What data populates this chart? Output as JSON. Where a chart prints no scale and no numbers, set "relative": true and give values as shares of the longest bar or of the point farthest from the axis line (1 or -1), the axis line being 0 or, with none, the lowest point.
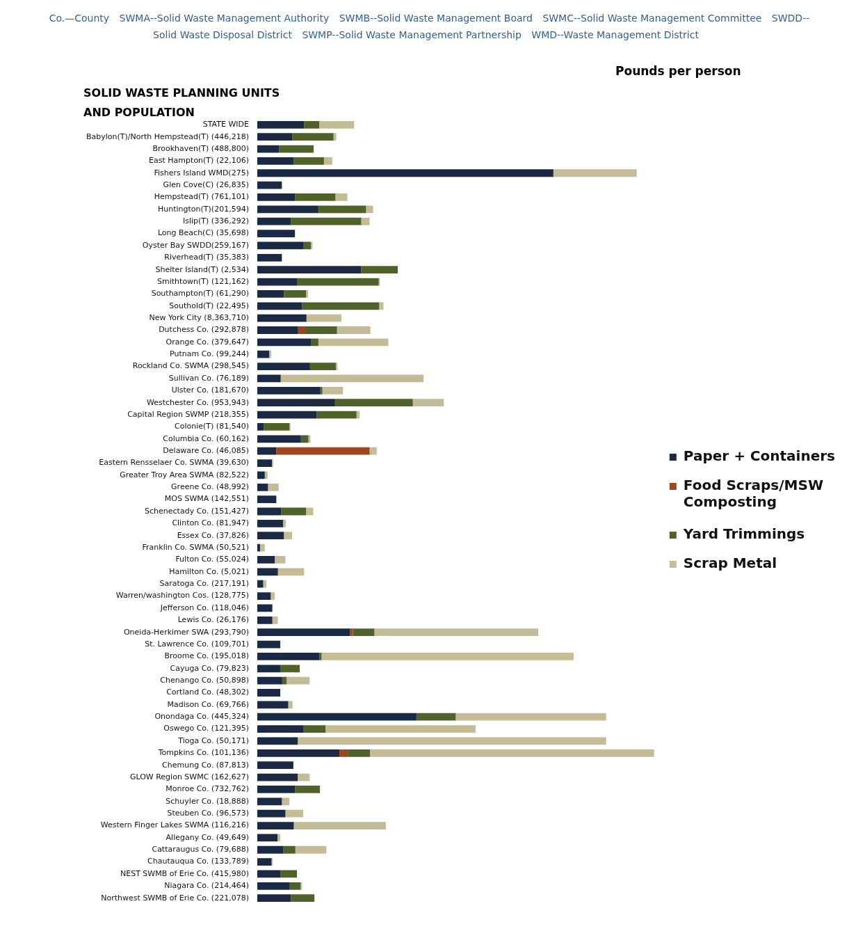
{
  "chart_data": {
    "type": "bar",
    "orientation": "horizontal",
    "stacked": true,
    "relative": true,
    "title": "SOLID WASTE PLANNING UNITS AND POPULATION",
    "subtitle": "Pounds per person",
    "legend": "right",
    "annotations": [
      "Co.—County",
      "SWMA--Solid Waste Management Authority",
      "SWMB--Solid Waste Management Board",
      "SWMC--Solid Waste Management Committee",
      "SWDD--Solid Waste Disposal District",
      "SWMP--Solid Waste Management Partnership",
      "WMD--Waste Management District"
    ],
    "categories": [
      "STATE WIDE",
      "Babylon(T)/North Hempstead(T) (446,218)",
      "Brookhaven(T) (488,800)",
      "East Hampton(T) (22,106)",
      "Fishers Island WMD(275)",
      "Glen Cove(C) (26,835)",
      "Hempstead(T) (761,101)",
      "Huntington(T)(201,594)",
      "Islip(T) (336,292)",
      "Long Beach(C) (35,698)",
      "Oyster Bay SWDD(259,167)",
      "Riverhead(T) (35,383)",
      "Shelter Island(T) (2,534)",
      "Smithtown(T) (121,162)",
      "Southampton(T) (61,290)",
      "Southold(T) (22,495)",
      "New York City (8,363,710)",
      "Dutchess Co. (292,878)",
      "Orange Co. (379,647)",
      "Putnam Co. (99,244)",
      "Rockland Co. SWMA (298,545)",
      "Sullivan Co. (76,189)",
      "Ulster Co. (181,670)",
      "Westchester Co. (953,943)",
      "Capital Region SWMP (218,355)",
      "Colonie(T) (81,540)",
      "Columbia Co. (60,162)",
      "Delaware Co. (46,085)",
      "Eastern Rensselaer Co. SWMA (39,630)",
      "Greater Troy Area SWMA (82,522)",
      "Greene Co. (48,992)",
      "MOS SWMA (142,551)",
      "Schenectady Co. (151,427)",
      "Clinton Co. (81,947)",
      "Essex Co. (37,826)",
      "Franklin Co. SWMA (50,521)",
      "Fulton Co. (55,024)",
      "Hamilton Co. (5,021)",
      "Saratoga Co. (217,191)",
      "Warren/washington Cos. (128,775)",
      "Jefferson Co. (118,046)",
      "Lewis Co. (26,176)",
      "Oneida-Herkimer SWA (293,790)",
      "St. Lawrence Co. (109,701)",
      "Broome Co. (195,018)",
      "Cayuga Co. (79,823)",
      "Chenango Co. (50,898)",
      "Cortland Co. (48,302)",
      "Madison Co. (69,766)",
      "Onondaga Co. (445,324)",
      "Oswego Co. (121,395)",
      "Tioga Co. (50,171)",
      "Tompkins Co. (101,136)",
      "Chemung Co. (87,813)",
      "GLOW Region SWMC (162,627)",
      "Monroe Co. (732,762)",
      "Schuyler Co. (18,888)",
      "Steuben Co. (96,573)",
      "Western Finger Lakes SWMA (116,216)",
      "Allegany Co. (49,649)",
      "Cattaraugus Co. (79,688)",
      "Chautauqua Co. (133,789)",
      "NEST SWMB of Erie Co. (415,980)",
      "Niagara Co. (214,464)",
      "Northwest SWMB of Erie Co. (221,078)"
    ],
    "series": [
      {
        "name": "Paper + Containers",
        "color": "#1a2a44",
        "values": [
          0.118,
          0.088,
          0.055,
          0.092,
          0.746,
          0.062,
          0.095,
          0.154,
          0.085,
          0.095,
          0.117,
          0.062,
          0.262,
          0.1,
          0.067,
          0.113,
          0.124,
          0.103,
          0.135,
          0.03,
          0.133,
          0.059,
          0.159,
          0.196,
          0.15,
          0.016,
          0.11,
          0.048,
          0.037,
          0.019,
          0.027,
          0.048,
          0.06,
          0.065,
          0.067,
          0.007,
          0.044,
          0.052,
          0.015,
          0.034,
          0.038,
          0.038,
          0.234,
          0.058,
          0.157,
          0.058,
          0.063,
          0.058,
          0.078,
          0.401,
          0.117,
          0.102,
          0.207,
          0.091,
          0.102,
          0.095,
          0.062,
          0.071,
          0.092,
          0.051,
          0.066,
          0.036,
          0.059,
          0.082,
          0.085
        ]
      },
      {
        "name": "Food Scraps/MSW Composting",
        "color": "#a0461a",
        "values": [
          0,
          0,
          0,
          0,
          0,
          0,
          0,
          0,
          0,
          0,
          0,
          0,
          0,
          0,
          0,
          0,
          0,
          0.018,
          0,
          0,
          0,
          0,
          0,
          0,
          0,
          0,
          0,
          0.235,
          0,
          0,
          0,
          0,
          0,
          0,
          0,
          0,
          0,
          0,
          0,
          0,
          0,
          0,
          0.007,
          0,
          0,
          0,
          0,
          0,
          0,
          0,
          0,
          0,
          0.021,
          0,
          0,
          0,
          0,
          0,
          0,
          0,
          0,
          0,
          0,
          0,
          0
        ]
      },
      {
        "name": "Yard Trimmings",
        "color": "#4f6228",
        "values": [
          0.038,
          0.104,
          0.087,
          0.076,
          0,
          0,
          0.102,
          0.12,
          0.177,
          0,
          0.018,
          0,
          0.092,
          0.206,
          0.056,
          0.194,
          0,
          0.08,
          0.019,
          0,
          0.065,
          0,
          0.005,
          0.196,
          0.1,
          0.065,
          0.019,
          0,
          0,
          0,
          0,
          0,
          0.063,
          0,
          0,
          0,
          0,
          0,
          0,
          0,
          0,
          0,
          0.054,
          0,
          0.005,
          0.049,
          0.011,
          0,
          0,
          0.099,
          0.055,
          0,
          0.056,
          0,
          0,
          0.063,
          0,
          0,
          0,
          0,
          0.03,
          0,
          0.041,
          0.027,
          0.059
        ]
      },
      {
        "name": "Scrap Metal",
        "color": "#c4bc96",
        "values": [
          0.088,
          0.007,
          0,
          0.021,
          0.21,
          0,
          0.03,
          0.018,
          0.021,
          0,
          0.004,
          0,
          0,
          0.003,
          0.005,
          0.011,
          0.088,
          0.084,
          0.176,
          0.005,
          0.004,
          0.36,
          0.052,
          0.078,
          0.008,
          0.003,
          0.005,
          0.018,
          0.003,
          0.007,
          0.027,
          0,
          0.018,
          0.007,
          0.021,
          0.012,
          0.027,
          0.066,
          0.008,
          0.01,
          0,
          0.014,
          0.413,
          0,
          0.635,
          0,
          0.058,
          0,
          0.011,
          0.379,
          0.378,
          0.777,
          0.716,
          0,
          0.03,
          0,
          0.019,
          0.045,
          0.232,
          0.007,
          0.078,
          0.003,
          0,
          0.004,
          0
        ]
      }
    ]
  }
}
